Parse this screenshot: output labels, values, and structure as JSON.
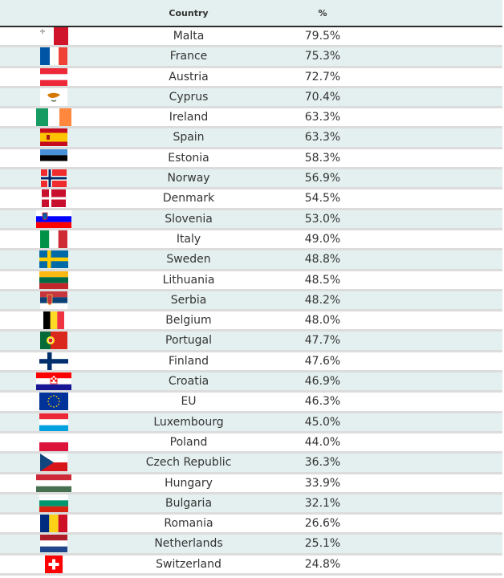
{
  "header": {
    "country": "Country",
    "percent": "%"
  },
  "rows": [
    {
      "country": "Malta",
      "value": "79.5%",
      "flag": "malta-flag-icon"
    },
    {
      "country": "France",
      "value": "75.3%",
      "flag": "france-flag-icon"
    },
    {
      "country": "Austria",
      "value": "72.7%",
      "flag": "austria-flag-icon"
    },
    {
      "country": "Cyprus",
      "value": "70.4%",
      "flag": "cyprus-flag-icon"
    },
    {
      "country": "Ireland",
      "value": "63.3%",
      "flag": "ireland-flag-icon"
    },
    {
      "country": "Spain",
      "value": "63.3%",
      "flag": "spain-flag-icon"
    },
    {
      "country": "Estonia",
      "value": "58.3%",
      "flag": "estonia-flag-icon"
    },
    {
      "country": "Norway",
      "value": "56.9%",
      "flag": "norway-flag-icon"
    },
    {
      "country": "Denmark",
      "value": "54.5%",
      "flag": "denmark-flag-icon"
    },
    {
      "country": "Slovenia",
      "value": "53.0%",
      "flag": "slovenia-flag-icon"
    },
    {
      "country": "Italy",
      "value": "49.0%",
      "flag": "italy-flag-icon"
    },
    {
      "country": "Sweden",
      "value": "48.8%",
      "flag": "sweden-flag-icon"
    },
    {
      "country": "Lithuania",
      "value": "48.5%",
      "flag": "lithuania-flag-icon"
    },
    {
      "country": "Serbia",
      "value": "48.2%",
      "flag": "serbia-flag-icon"
    },
    {
      "country": "Belgium",
      "value": "48.0%",
      "flag": "belgium-flag-icon"
    },
    {
      "country": "Portugal",
      "value": "47.7%",
      "flag": "portugal-flag-icon"
    },
    {
      "country": "Finland",
      "value": "47.6%",
      "flag": "finland-flag-icon"
    },
    {
      "country": "Croatia",
      "value": "46.9%",
      "flag": "croatia-flag-icon"
    },
    {
      "country": "EU",
      "value": "46.3%",
      "flag": "eu-flag-icon"
    },
    {
      "country": "Luxembourg",
      "value": "45.0%",
      "flag": "luxembourg-flag-icon"
    },
    {
      "country": "Poland",
      "value": "44.0%",
      "flag": "poland-flag-icon"
    },
    {
      "country": "Czech Republic",
      "value": "36.3%",
      "flag": "czech-republic-flag-icon"
    },
    {
      "country": "Hungary",
      "value": "33.9%",
      "flag": "hungary-flag-icon"
    },
    {
      "country": "Bulgaria",
      "value": "32.1%",
      "flag": "bulgaria-flag-icon"
    },
    {
      "country": "Romania",
      "value": "26.6%",
      "flag": "romania-flag-icon"
    },
    {
      "country": "Netherlands",
      "value": "25.1%",
      "flag": "netherlands-flag-icon"
    },
    {
      "country": "Switzerland",
      "value": "24.8%",
      "flag": "switzerland-flag-icon"
    }
  ],
  "colors": {
    "header_bg": "#e4f0ef",
    "alt_row_bg": "#e4f0ef",
    "row_border": "#dcdcdc",
    "header_border": "#2b2b2b"
  }
}
